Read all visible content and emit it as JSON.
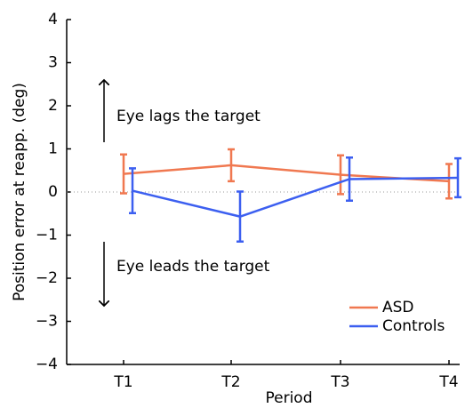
{
  "chart_data": {
    "type": "line",
    "y_label": "Position error at reapp. (deg)",
    "x_label": "Period",
    "categories": [
      "T1",
      "T2",
      "T3",
      "T4"
    ],
    "series": [
      {
        "name": "ASD",
        "color": "#f07850",
        "values": [
          0.42,
          0.62,
          0.4,
          0.25
        ],
        "errors": [
          0.45,
          0.37,
          0.45,
          0.4
        ]
      },
      {
        "name": "Controls",
        "color": "#3c5ff0",
        "values": [
          0.03,
          -0.57,
          0.3,
          0.33
        ],
        "errors": [
          0.52,
          0.58,
          0.5,
          0.45
        ]
      }
    ],
    "ylim": [
      -4,
      4
    ],
    "yticks": [
      {
        "value": -4,
        "label": "−4"
      },
      {
        "value": -3,
        "label": "−3"
      },
      {
        "value": -2,
        "label": "−2"
      },
      {
        "value": -1,
        "label": "−1"
      },
      0,
      1,
      2,
      3,
      4
    ],
    "annotations": [
      "Eye lags the target",
      "Eye leads the target"
    ],
    "legend": "lower right"
  }
}
